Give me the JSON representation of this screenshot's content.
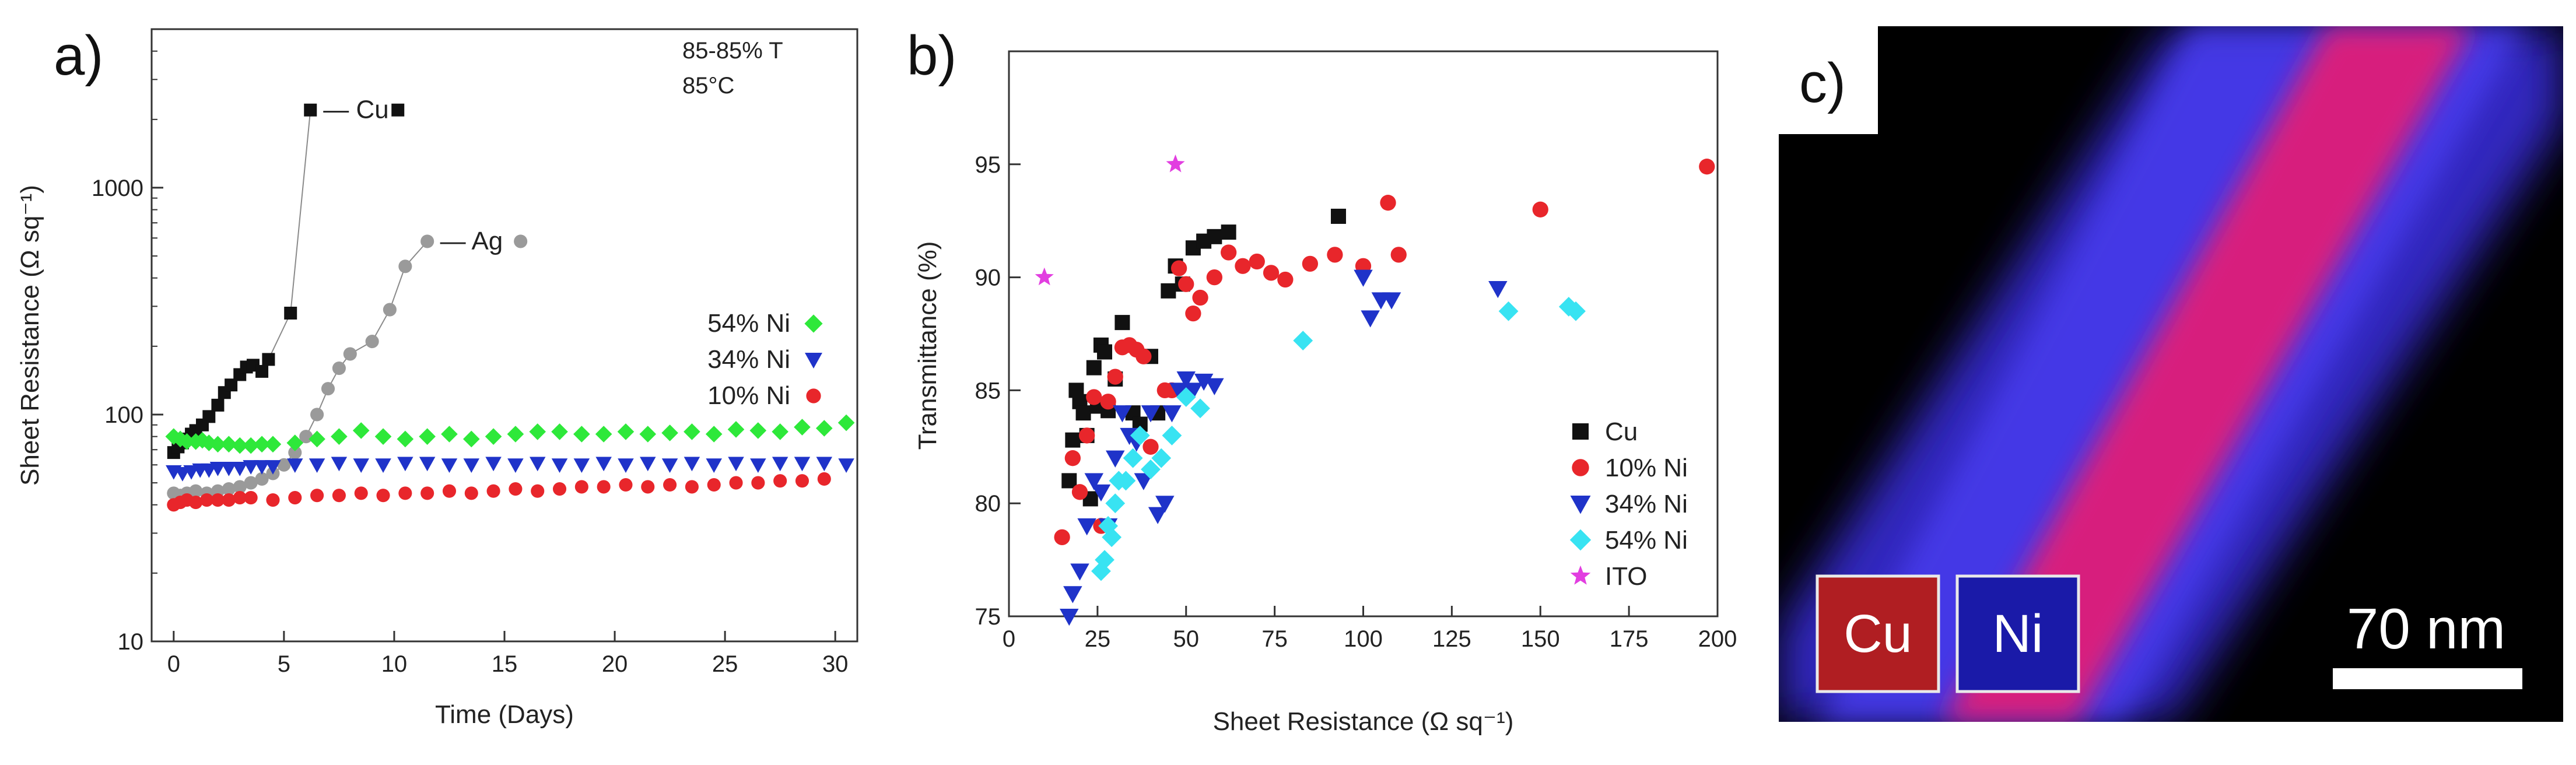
{
  "panels": {
    "a": "a)",
    "b": "b)",
    "c": "c)"
  },
  "colors": {
    "Cu": "#111111",
    "Ag": "#9a9a9a",
    "10% Ni": "#e8262b",
    "34% Ni": "#1f33c9",
    "54% Ni": "#2ee83a",
    "54% Ni b": "#38e3f2",
    "ITO": "#e23ee0"
  },
  "chart_data": [
    {
      "type": "scatter",
      "panel": "a)",
      "xlabel": "Time (Days)",
      "ylabel": "Sheet Resistance (Ω sq⁻¹)",
      "yscale": "log",
      "xlim": [
        -1,
        31
      ],
      "ylim": [
        10,
        5000
      ],
      "xticks": [
        "0",
        "5",
        "10",
        "15",
        "20",
        "25",
        "30"
      ],
      "yticks": [
        "10",
        "100",
        "1000"
      ],
      "annotation": {
        "line1": "85-85% T",
        "line2": "85°C"
      },
      "series": [
        {
          "name": "Cu",
          "marker": "square",
          "color": "#111111",
          "label": "— Cu",
          "x": [
            0,
            0.2,
            0.4,
            0.6,
            0.8,
            1,
            1.3,
            1.6,
            2,
            2.3,
            2.6,
            3,
            3.3,
            3.6,
            4,
            4.3,
            5.3,
            6.2
          ],
          "y": [
            68,
            72,
            75,
            78,
            82,
            85,
            90,
            98,
            110,
            125,
            135,
            150,
            162,
            165,
            155,
            175,
            280,
            2200
          ]
        },
        {
          "name": "Ag",
          "marker": "circle",
          "color": "#9a9a9a",
          "label": "— Ag",
          "x": [
            0,
            0.3,
            0.6,
            1,
            1.5,
            2,
            2.5,
            3,
            3.5,
            4,
            4.5,
            5,
            5.5,
            6,
            6.5,
            7,
            7.5,
            8,
            9,
            9.8,
            10.5,
            11.5
          ],
          "y": [
            45,
            44,
            45,
            46,
            45,
            46,
            47,
            48,
            50,
            52,
            55,
            60,
            68,
            80,
            100,
            130,
            160,
            185,
            210,
            290,
            450,
            580
          ]
        },
        {
          "name": "54% Ni",
          "marker": "diamond",
          "color": "#2ee83a",
          "x": [
            0,
            0.3,
            0.6,
            1,
            1.3,
            1.6,
            2,
            2.5,
            3,
            3.5,
            4,
            4.5,
            5.5,
            6.5,
            7.5,
            8.5,
            9.5,
            10.5,
            11.5,
            12.5,
            13.5,
            14.5,
            15.5,
            16.5,
            17.5,
            18.5,
            19.5,
            20.5,
            21.5,
            22.5,
            23.5,
            24.5,
            25.5,
            26.5,
            27.5,
            28.5,
            29.5,
            30.5
          ],
          "y": [
            80,
            78,
            76,
            76,
            77,
            75,
            74,
            74,
            73,
            73,
            74,
            74,
            75,
            78,
            80,
            85,
            80,
            78,
            80,
            82,
            78,
            80,
            82,
            84,
            84,
            82,
            82,
            84,
            82,
            83,
            84,
            82,
            86,
            85,
            84,
            88,
            87,
            92
          ]
        },
        {
          "name": "34% Ni",
          "marker": "triangle-down",
          "color": "#1f33c9",
          "x": [
            0,
            0.4,
            0.8,
            1.2,
            1.6,
            2,
            2.5,
            3,
            3.5,
            4,
            4.5,
            5.5,
            6.5,
            7.5,
            8.5,
            9.5,
            10.5,
            11.5,
            12.5,
            13.5,
            14.5,
            15.5,
            16.5,
            17.5,
            18.5,
            19.5,
            20.5,
            21.5,
            22.5,
            23.5,
            24.5,
            25.5,
            26.5,
            27.5,
            28.5,
            29.5,
            30.5
          ],
          "y": [
            56,
            55,
            56,
            57,
            57,
            58,
            58,
            58,
            59,
            59,
            59,
            60,
            60,
            61,
            60,
            60,
            61,
            61,
            60,
            60,
            61,
            60,
            61,
            60,
            60,
            61,
            60,
            61,
            60,
            61,
            60,
            61,
            60,
            61,
            61,
            61,
            60
          ]
        },
        {
          "name": "10% Ni",
          "marker": "circle",
          "color": "#e8262b",
          "x": [
            0,
            0.3,
            0.6,
            1,
            1.5,
            2,
            2.5,
            3,
            3.5,
            4.5,
            5.5,
            6.5,
            7.5,
            8.5,
            9.5,
            10.5,
            11.5,
            12.5,
            13.5,
            14.5,
            15.5,
            16.5,
            17.5,
            18.5,
            19.5,
            20.5,
            21.5,
            22.5,
            23.5,
            24.5,
            25.5,
            26.5,
            27.5,
            28.5,
            29.5
          ],
          "y": [
            40,
            41,
            42,
            41,
            42,
            42,
            42,
            43,
            43,
            42,
            43,
            44,
            44,
            45,
            44,
            45,
            45,
            46,
            45,
            46,
            47,
            46,
            47,
            48,
            48,
            49,
            48,
            49,
            48,
            49,
            50,
            50,
            51,
            51,
            52
          ]
        }
      ],
      "legend": [
        "54% Ni",
        "34% Ni",
        "10% Ni"
      ]
    },
    {
      "type": "scatter",
      "panel": "b)",
      "xlabel": "Sheet Resistance (Ω sq⁻¹)",
      "ylabel": "Transmittance (%)",
      "xlim": [
        0,
        200
      ],
      "ylim": [
        75,
        100
      ],
      "xticks": [
        "0",
        "25",
        "50",
        "75",
        "100",
        "125",
        "150",
        "175",
        "200"
      ],
      "yticks": [
        "75",
        "80",
        "85",
        "90",
        "95"
      ],
      "series": [
        {
          "name": "Cu",
          "marker": "square",
          "color": "#111111",
          "x": [
            17,
            18,
            19,
            20,
            21,
            22,
            23,
            24,
            25,
            26,
            27,
            28,
            30,
            32,
            35,
            37,
            40,
            42,
            45,
            47,
            49,
            52,
            55,
            58,
            62,
            93
          ],
          "y": [
            81,
            82.8,
            85,
            84.5,
            84,
            83,
            80.2,
            86,
            84.3,
            87,
            86.7,
            84.1,
            85.5,
            88,
            84,
            83.5,
            86.5,
            84,
            89.4,
            90.5,
            89.7,
            91.3,
            91.6,
            91.8,
            92,
            92.7
          ]
        },
        {
          "name": "10% Ni",
          "marker": "circle",
          "color": "#e8262b",
          "x": [
            15,
            18,
            20,
            22,
            24,
            26,
            28,
            30,
            32,
            34,
            36,
            38,
            40,
            44,
            46,
            48,
            50,
            52,
            54,
            58,
            62,
            66,
            70,
            74,
            78,
            85,
            92,
            100,
            110,
            107,
            150,
            197
          ],
          "y": [
            78.5,
            82,
            80.5,
            83,
            84.7,
            79,
            84.5,
            85.6,
            86.9,
            87,
            86.8,
            86.5,
            82.5,
            85,
            85,
            90.4,
            89.7,
            88.4,
            89.1,
            90,
            91.1,
            90.5,
            90.7,
            90.2,
            89.9,
            90.6,
            91,
            90.5,
            91,
            93.3,
            93,
            94.9
          ]
        },
        {
          "name": "34% Ni",
          "marker": "triangle-down",
          "color": "#1f33c9",
          "x": [
            17,
            18,
            20,
            22,
            24,
            26,
            28,
            30,
            32,
            34,
            36,
            38,
            40,
            42,
            44,
            46,
            48,
            50,
            52,
            55,
            58,
            100,
            102,
            105,
            108,
            138
          ],
          "y": [
            75,
            76,
            77,
            79,
            81,
            80.5,
            79,
            82,
            84,
            83,
            82.7,
            81,
            84,
            79.5,
            80,
            84,
            85,
            85.5,
            85,
            85.4,
            85.2,
            90,
            88.2,
            89,
            89,
            89.5
          ]
        },
        {
          "name": "54% Ni",
          "marker": "diamond",
          "color": "#38e3f2",
          "x": [
            26,
            27,
            28,
            29,
            30,
            31,
            33,
            35,
            37,
            40,
            43,
            46,
            50,
            54,
            83,
            141,
            158,
            160
          ],
          "y": [
            77,
            77.5,
            79,
            78.5,
            80,
            81,
            81,
            82,
            83,
            81.5,
            82,
            83,
            84.7,
            84.2,
            87.2,
            88.5,
            88.7,
            88.5
          ]
        },
        {
          "name": "ITO",
          "marker": "star",
          "color": "#e23ee0",
          "x": [
            10,
            47
          ],
          "y": [
            90,
            95
          ]
        }
      ],
      "legend": [
        "Cu",
        "10% Ni",
        "34% Ni",
        "54% Ni",
        "ITO"
      ]
    }
  ],
  "panel_c": {
    "labels": {
      "cu": "Cu",
      "ni": "Ni"
    },
    "scale_bar": "70 nm"
  }
}
